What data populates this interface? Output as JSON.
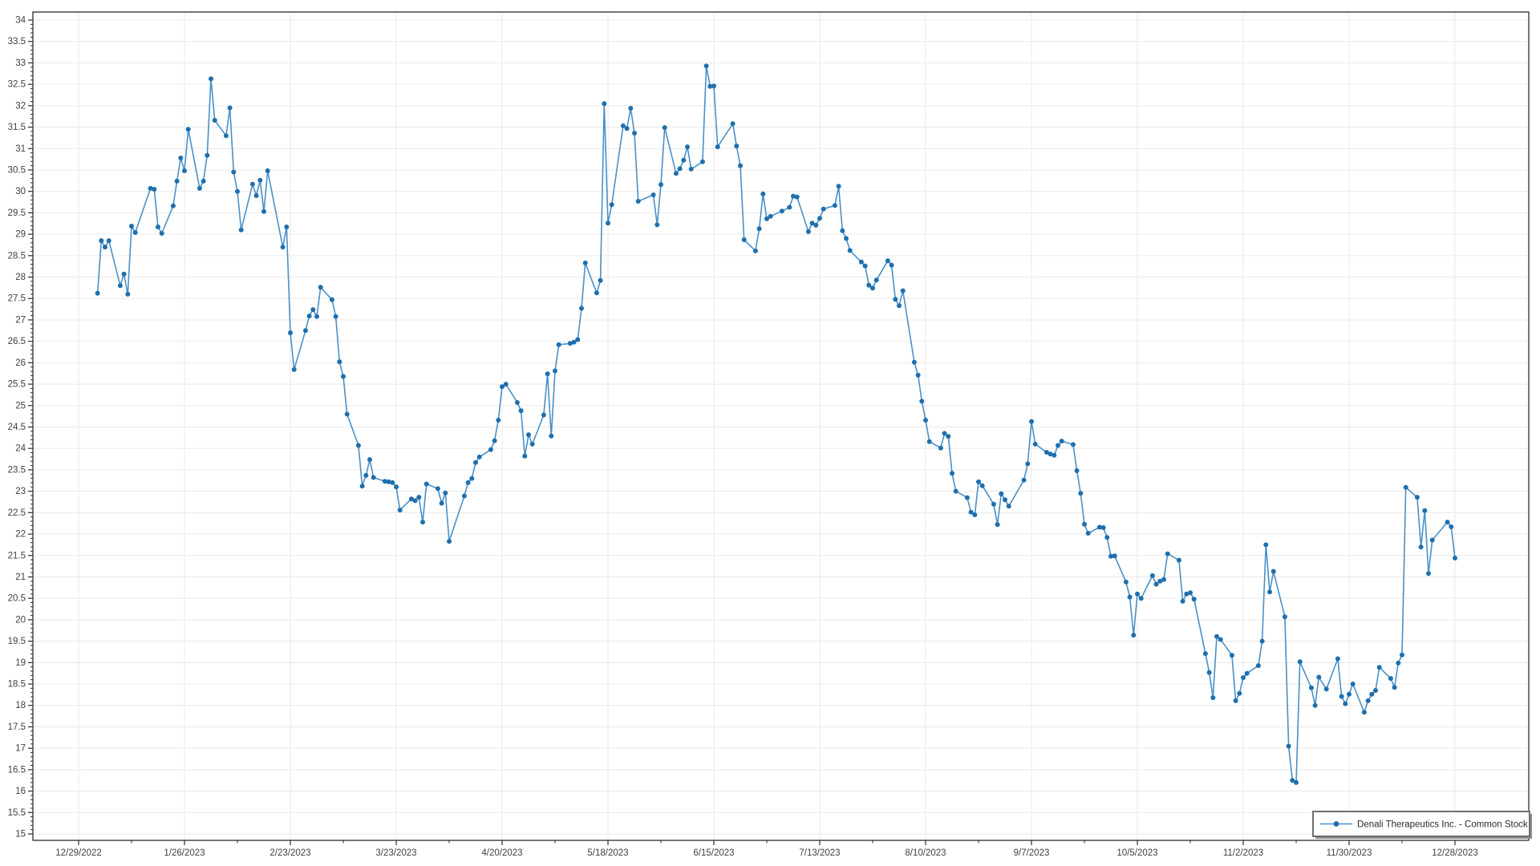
{
  "legend": {
    "label": "Denali Therapeutics Inc. - Common Stock"
  },
  "colors": {
    "background": "#ffffff",
    "plot_border": "#1a1a1a",
    "gridline": "#e9e9e9",
    "axis_tick": "#2b2b2b",
    "tick_label": "#3f3f3f",
    "line": "#4a90c8",
    "marker": "#1e6fad",
    "legend_border": "#6e6e6e",
    "legend_shadow": "#8f8f8f",
    "legend_text": "#2b2b2b"
  },
  "chart_data": {
    "type": "line",
    "title": "",
    "xlabel": "",
    "ylabel": "",
    "grid": true,
    "legend_position": "bottom-right-inside",
    "y_min": 15,
    "y_max": 34,
    "y_tick_step": 0.5,
    "y_minor_tick_step": 0.1,
    "x_axis_start": "12/29/2022",
    "x_tick_interval_days": 28,
    "x_minor_tick_interval_days": 14,
    "x_tick_labels": [
      "12/29/2022",
      "1/26/2023",
      "2/23/2023",
      "3/23/2023",
      "4/20/2023",
      "5/18/2023",
      "6/15/2023",
      "7/13/2023",
      "8/10/2023",
      "9/7/2023",
      "10/5/2023",
      "11/2/2023",
      "11/30/2023",
      "12/28/2023"
    ],
    "series": [
      {
        "name": "Denali Therapeutics Inc. - Common Stock",
        "dates": [
          "1/3/2023",
          "1/4/2023",
          "1/5/2023",
          "1/6/2023",
          "1/9/2023",
          "1/10/2023",
          "1/11/2023",
          "1/12/2023",
          "1/13/2023",
          "1/17/2023",
          "1/18/2023",
          "1/19/2023",
          "1/20/2023",
          "1/23/2023",
          "1/24/2023",
          "1/25/2023",
          "1/26/2023",
          "1/27/2023",
          "1/30/2023",
          "1/31/2023",
          "2/1/2023",
          "2/2/2023",
          "2/3/2023",
          "2/6/2023",
          "2/7/2023",
          "2/8/2023",
          "2/9/2023",
          "2/10/2023",
          "2/13/2023",
          "2/14/2023",
          "2/15/2023",
          "2/16/2023",
          "2/17/2023",
          "2/21/2023",
          "2/22/2023",
          "2/23/2023",
          "2/24/2023",
          "2/27/2023",
          "2/28/2023",
          "3/1/2023",
          "3/2/2023",
          "3/3/2023",
          "3/6/2023",
          "3/7/2023",
          "3/8/2023",
          "3/9/2023",
          "3/10/2023",
          "3/13/2023",
          "3/14/2023",
          "3/15/2023",
          "3/16/2023",
          "3/17/2023",
          "3/20/2023",
          "3/21/2023",
          "3/22/2023",
          "3/23/2023",
          "3/24/2023",
          "3/27/2023",
          "3/28/2023",
          "3/29/2023",
          "3/30/2023",
          "3/31/2023",
          "4/3/2023",
          "4/4/2023",
          "4/5/2023",
          "4/6/2023",
          "4/10/2023",
          "4/11/2023",
          "4/12/2023",
          "4/13/2023",
          "4/14/2023",
          "4/17/2023",
          "4/18/2023",
          "4/19/2023",
          "4/20/2023",
          "4/21/2023",
          "4/24/2023",
          "4/25/2023",
          "4/26/2023",
          "4/27/2023",
          "4/28/2023",
          "5/1/2023",
          "5/2/2023",
          "5/3/2023",
          "5/4/2023",
          "5/5/2023",
          "5/8/2023",
          "5/9/2023",
          "5/10/2023",
          "5/11/2023",
          "5/12/2023",
          "5/15/2023",
          "5/16/2023",
          "5/17/2023",
          "5/18/2023",
          "5/19/2023",
          "5/22/2023",
          "5/23/2023",
          "5/24/2023",
          "5/25/2023",
          "5/26/2023",
          "5/30/2023",
          "5/31/2023",
          "6/1/2023",
          "6/2/2023",
          "6/5/2023",
          "6/6/2023",
          "6/7/2023",
          "6/8/2023",
          "6/9/2023",
          "6/12/2023",
          "6/13/2023",
          "6/14/2023",
          "6/15/2023",
          "6/16/2023",
          "6/20/2023",
          "6/21/2023",
          "6/22/2023",
          "6/23/2023",
          "6/26/2023",
          "6/27/2023",
          "6/28/2023",
          "6/29/2023",
          "6/30/2023",
          "7/3/2023",
          "7/5/2023",
          "7/6/2023",
          "7/7/2023",
          "7/10/2023",
          "7/11/2023",
          "7/12/2023",
          "7/13/2023",
          "7/14/2023",
          "7/17/2023",
          "7/18/2023",
          "7/19/2023",
          "7/20/2023",
          "7/21/2023",
          "7/24/2023",
          "7/25/2023",
          "7/26/2023",
          "7/27/2023",
          "7/28/2023",
          "7/31/2023",
          "8/1/2023",
          "8/2/2023",
          "8/3/2023",
          "8/4/2023",
          "8/7/2023",
          "8/8/2023",
          "8/9/2023",
          "8/10/2023",
          "8/11/2023",
          "8/14/2023",
          "8/15/2023",
          "8/16/2023",
          "8/17/2023",
          "8/18/2023",
          "8/21/2023",
          "8/22/2023",
          "8/23/2023",
          "8/24/2023",
          "8/25/2023",
          "8/28/2023",
          "8/29/2023",
          "8/30/2023",
          "8/31/2023",
          "9/1/2023",
          "9/5/2023",
          "9/6/2023",
          "9/7/2023",
          "9/8/2023",
          "9/11/2023",
          "9/12/2023",
          "9/13/2023",
          "9/14/2023",
          "9/15/2023",
          "9/18/2023",
          "9/19/2023",
          "9/20/2023",
          "9/21/2023",
          "9/22/2023",
          "9/25/2023",
          "9/26/2023",
          "9/27/2023",
          "9/28/2023",
          "9/29/2023",
          "10/2/2023",
          "10/3/2023",
          "10/4/2023",
          "10/5/2023",
          "10/6/2023",
          "10/9/2023",
          "10/10/2023",
          "10/11/2023",
          "10/12/2023",
          "10/13/2023",
          "10/16/2023",
          "10/17/2023",
          "10/18/2023",
          "10/19/2023",
          "10/20/2023",
          "10/23/2023",
          "10/24/2023",
          "10/25/2023",
          "10/26/2023",
          "10/27/2023",
          "10/30/2023",
          "10/31/2023",
          "11/1/2023",
          "11/2/2023",
          "11/3/2023",
          "11/6/2023",
          "11/7/2023",
          "11/8/2023",
          "11/9/2023",
          "11/10/2023",
          "11/13/2023",
          "11/14/2023",
          "11/15/2023",
          "11/16/2023",
          "11/17/2023",
          "11/20/2023",
          "11/21/2023",
          "11/22/2023",
          "11/24/2023",
          "11/27/2023",
          "11/28/2023",
          "11/29/2023",
          "11/30/2023",
          "12/1/2023",
          "12/4/2023",
          "12/5/2023",
          "12/6/2023",
          "12/7/2023",
          "12/8/2023",
          "12/11/2023",
          "12/12/2023",
          "12/13/2023",
          "12/14/2023",
          "12/15/2023",
          "12/18/2023",
          "12/19/2023",
          "12/20/2023",
          "12/21/2023",
          "12/22/2023",
          "12/26/2023",
          "12/27/2023",
          "12/28/2023"
        ],
        "closes": [
          27.62,
          28.85,
          28.7,
          28.85,
          27.8,
          28.07,
          27.6,
          29.19,
          29.04,
          30.07,
          30.05,
          29.17,
          29.02,
          29.66,
          30.24,
          30.78,
          30.48,
          31.45,
          30.07,
          30.24,
          30.84,
          32.63,
          31.66,
          31.3,
          31.95,
          30.45,
          30.0,
          29.1,
          30.17,
          29.9,
          30.26,
          29.53,
          30.48,
          28.7,
          29.17,
          26.7,
          25.84,
          26.75,
          27.09,
          27.24,
          27.08,
          27.76,
          27.47,
          27.08,
          26.02,
          25.68,
          24.8,
          24.07,
          23.12,
          23.37,
          23.74,
          23.32,
          23.23,
          23.22,
          23.2,
          23.1,
          22.56,
          22.82,
          22.78,
          22.86,
          22.28,
          23.17,
          23.06,
          22.72,
          22.96,
          21.83,
          22.89,
          23.2,
          23.3,
          23.67,
          23.8,
          23.97,
          24.18,
          24.66,
          25.44,
          25.5,
          25.07,
          24.88,
          23.82,
          24.32,
          24.1,
          24.78,
          25.74,
          24.29,
          25.81,
          26.42,
          26.45,
          26.48,
          26.54,
          27.27,
          28.33,
          27.63,
          27.92,
          32.05,
          29.26,
          29.69,
          31.53,
          31.47,
          31.94,
          31.36,
          29.77,
          29.92,
          29.22,
          30.16,
          31.49,
          30.42,
          30.53,
          30.73,
          31.04,
          30.52,
          30.69,
          32.93,
          32.45,
          32.46,
          31.04,
          31.58,
          31.06,
          30.6,
          28.87,
          28.61,
          29.13,
          29.94,
          29.36,
          29.42,
          29.54,
          29.63,
          29.89,
          29.87,
          29.06,
          29.26,
          29.21,
          29.37,
          29.59,
          29.67,
          30.12,
          29.08,
          28.9,
          28.62,
          28.35,
          28.26,
          27.81,
          27.74,
          27.93,
          28.38,
          28.28,
          27.48,
          27.33,
          27.68,
          26.01,
          25.71,
          25.1,
          24.66,
          24.16,
          24.01,
          24.35,
          24.28,
          23.42,
          23.0,
          22.85,
          22.51,
          22.45,
          23.22,
          23.13,
          22.7,
          22.22,
          22.94,
          22.8,
          22.65,
          23.26,
          23.64,
          24.63,
          24.1,
          23.91,
          23.87,
          23.84,
          24.07,
          24.17,
          24.09,
          23.48,
          22.95,
          22.23,
          22.02,
          22.16,
          22.15,
          21.92,
          21.48,
          21.49,
          20.88,
          20.53,
          19.64,
          20.6,
          20.5,
          21.03,
          20.83,
          20.9,
          20.94,
          21.54,
          21.39,
          20.43,
          20.6,
          20.63,
          20.48,
          19.21,
          18.77,
          18.18,
          19.61,
          19.54,
          19.17,
          18.11,
          18.28,
          18.65,
          18.75,
          18.93,
          19.5,
          21.75,
          20.65,
          21.13,
          20.07,
          17.05,
          16.25,
          16.2,
          19.02,
          18.41,
          18.0,
          18.66,
          18.38,
          19.09,
          18.21,
          18.04,
          18.26,
          18.5,
          17.84,
          18.11,
          18.26,
          18.35,
          18.89,
          18.63,
          18.42,
          18.99,
          19.18,
          23.09,
          22.86,
          21.7,
          22.55,
          21.08,
          21.86,
          22.28,
          22.17,
          21.44
        ]
      }
    ]
  }
}
